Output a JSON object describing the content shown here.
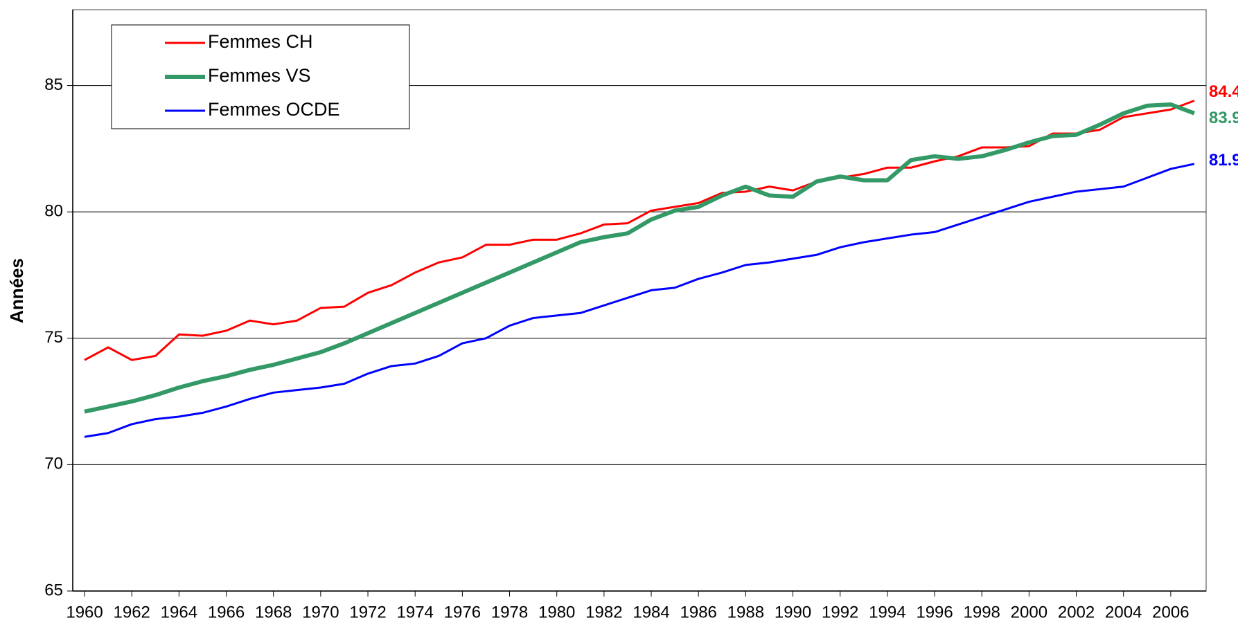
{
  "chart_data": {
    "type": "line",
    "y_label": "Années",
    "x": [
      1960,
      1961,
      1962,
      1963,
      1964,
      1965,
      1966,
      1967,
      1968,
      1969,
      1970,
      1971,
      1972,
      1973,
      1974,
      1975,
      1976,
      1977,
      1978,
      1979,
      1980,
      1981,
      1982,
      1983,
      1984,
      1985,
      1986,
      1987,
      1988,
      1989,
      1990,
      1991,
      1992,
      1993,
      1994,
      1995,
      1996,
      1997,
      1998,
      1999,
      2000,
      2001,
      2002,
      2003,
      2004,
      2005,
      2006,
      2007
    ],
    "xlim": [
      1959.5,
      2007.5
    ],
    "xticks": [
      1960,
      1962,
      1964,
      1966,
      1968,
      1970,
      1972,
      1974,
      1976,
      1978,
      1980,
      1982,
      1984,
      1986,
      1988,
      1990,
      1992,
      1994,
      1996,
      1998,
      2000,
      2002,
      2004,
      2006
    ],
    "ylim": [
      65,
      88
    ],
    "yticks": [
      65,
      70,
      75,
      80,
      85
    ],
    "grid": true,
    "legend": "upper left",
    "series": [
      {
        "name": "Femmes CH",
        "color": "#ff0000",
        "values": [
          74.14,
          74.64,
          74.14,
          74.3,
          75.15,
          75.1,
          75.3,
          75.7,
          75.55,
          75.7,
          76.2,
          76.25,
          76.8,
          77.1,
          77.6,
          78.0,
          78.2,
          78.7,
          78.7,
          78.9,
          78.9,
          79.15,
          79.5,
          79.55,
          80.05,
          80.2,
          80.35,
          80.75,
          80.8,
          81.0,
          80.85,
          81.2,
          81.35,
          81.5,
          81.75,
          81.75,
          82.0,
          82.2,
          82.55,
          82.55,
          82.6,
          83.1,
          83.1,
          83.25,
          83.75,
          83.9,
          84.05,
          84.4
        ]
      },
      {
        "name": "Femmes VS",
        "color": "#339966",
        "values": [
          72.1,
          72.3,
          72.5,
          72.75,
          73.05,
          73.3,
          73.5,
          73.75,
          73.95,
          74.2,
          74.45,
          74.8,
          75.2,
          75.6,
          76.0,
          76.4,
          76.8,
          77.2,
          77.6,
          78.0,
          78.4,
          78.8,
          79.0,
          79.15,
          79.7,
          80.05,
          80.2,
          80.65,
          81.0,
          80.65,
          80.6,
          81.2,
          81.4,
          81.25,
          81.25,
          82.05,
          82.2,
          82.1,
          82.2,
          82.45,
          82.75,
          83.0,
          83.05,
          83.45,
          83.9,
          84.2,
          84.25,
          83.9
        ]
      },
      {
        "name": "Femmes OCDE",
        "color": "#0000ff",
        "values": [
          71.1,
          71.25,
          71.6,
          71.8,
          71.9,
          72.05,
          72.3,
          72.6,
          72.85,
          72.95,
          73.05,
          73.2,
          73.6,
          73.9,
          74.0,
          74.3,
          74.8,
          75.0,
          75.5,
          75.8,
          75.9,
          76.0,
          76.3,
          76.6,
          76.9,
          77.0,
          77.35,
          77.6,
          77.9,
          78.0,
          78.15,
          78.3,
          78.6,
          78.8,
          78.95,
          79.1,
          79.2,
          79.5,
          79.8,
          80.1,
          80.4,
          80.6,
          80.8,
          80.9,
          81.0,
          81.35,
          81.7,
          81.9
        ]
      }
    ]
  }
}
